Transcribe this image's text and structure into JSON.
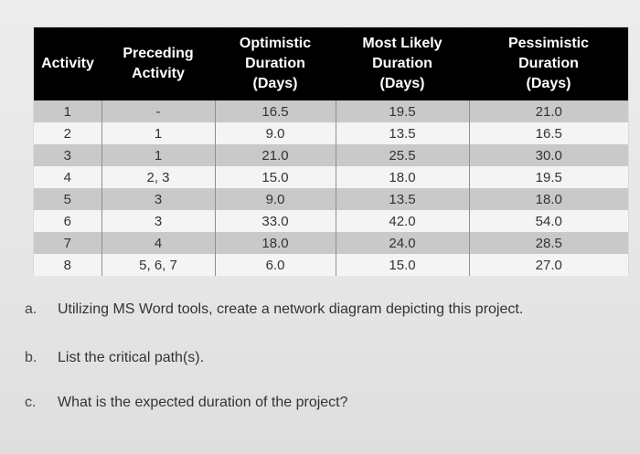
{
  "table": {
    "headers": [
      [
        "Activity"
      ],
      [
        "Preceding",
        "Activity"
      ],
      [
        "Optimistic",
        "Duration",
        "(Days)"
      ],
      [
        "Most Likely",
        "Duration",
        "(Days)"
      ],
      [
        "Pessimistic",
        "Duration",
        "(Days)"
      ]
    ],
    "rows": [
      [
        "1",
        "-",
        "16.5",
        "19.5",
        "21.0"
      ],
      [
        "2",
        "1",
        "9.0",
        "13.5",
        "16.5"
      ],
      [
        "3",
        "1",
        "21.0",
        "25.5",
        "30.0"
      ],
      [
        "4",
        "2, 3",
        "15.0",
        "18.0",
        "19.5"
      ],
      [
        "5",
        "3",
        "9.0",
        "13.5",
        "18.0"
      ],
      [
        "6",
        "3",
        "33.0",
        "42.0",
        "54.0"
      ],
      [
        "7",
        "4",
        "18.0",
        "24.0",
        "28.5"
      ],
      [
        "8",
        "5, 6, 7",
        "6.0",
        "15.0",
        "27.0"
      ]
    ]
  },
  "questions": [
    {
      "label": "a.",
      "text": "Utilizing MS Word tools, create a network diagram depicting this project."
    },
    {
      "label": "b.",
      "text": "List the critical path(s)."
    },
    {
      "label": "c.",
      "text": "What is the expected duration of the project?"
    }
  ],
  "colors": {
    "header_bg": "#000000",
    "row_shade": "#c9c9c9",
    "row_plain": "#f4f4f4"
  }
}
